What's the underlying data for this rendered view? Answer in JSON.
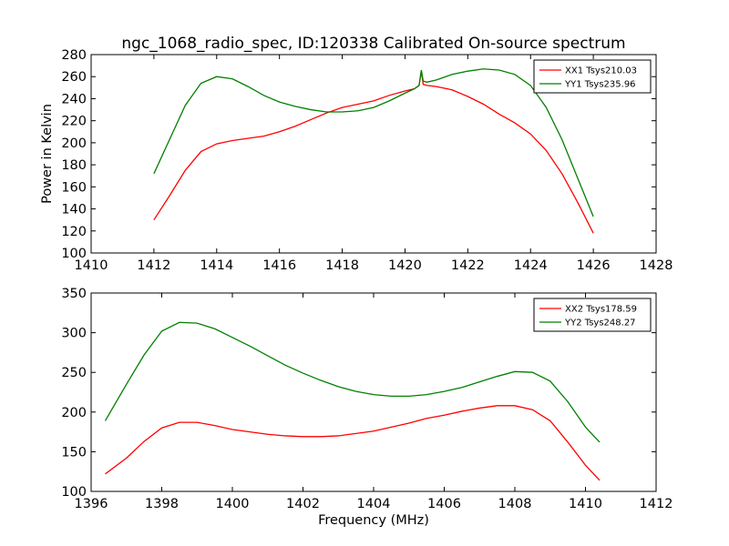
{
  "chart_data": [
    {
      "type": "line",
      "title": "ngc_1068_radio_spec, ID:120338 Calibrated On-source spectrum",
      "xlabel": "",
      "ylabel": "Power in Kelvin",
      "xlim": [
        1410,
        1428
      ],
      "ylim": [
        100,
        280
      ],
      "xticks": [
        1410,
        1412,
        1414,
        1416,
        1418,
        1420,
        1422,
        1424,
        1426,
        1428
      ],
      "yticks": [
        100,
        120,
        140,
        160,
        180,
        200,
        220,
        240,
        260,
        280
      ],
      "grid": false,
      "legend_position": "top-right",
      "series": [
        {
          "name": "XX1 Tsys210.03",
          "color": "#ff0000",
          "points": [
            [
              1412.0,
              130
            ],
            [
              1412.5,
              152
            ],
            [
              1413.0,
              175
            ],
            [
              1413.5,
              192
            ],
            [
              1414.0,
              199
            ],
            [
              1414.5,
              202
            ],
            [
              1415.0,
              204
            ],
            [
              1415.5,
              206
            ],
            [
              1416.0,
              210
            ],
            [
              1416.5,
              215
            ],
            [
              1417.0,
              221
            ],
            [
              1417.5,
              227
            ],
            [
              1418.0,
              232
            ],
            [
              1418.5,
              235
            ],
            [
              1419.0,
              238
            ],
            [
              1419.5,
              243
            ],
            [
              1420.0,
              247
            ],
            [
              1420.3,
              249
            ],
            [
              1420.45,
              252
            ],
            [
              1420.52,
              265
            ],
            [
              1420.58,
              253
            ],
            [
              1420.7,
              252
            ],
            [
              1421.0,
              251
            ],
            [
              1421.5,
              248
            ],
            [
              1422.0,
              242
            ],
            [
              1422.5,
              235
            ],
            [
              1423.0,
              226
            ],
            [
              1423.5,
              218
            ],
            [
              1424.0,
              208
            ],
            [
              1424.5,
              193
            ],
            [
              1425.0,
              172
            ],
            [
              1425.5,
              146
            ],
            [
              1426.0,
              118
            ]
          ]
        },
        {
          "name": "YY1 Tsys235.96",
          "color": "#008000",
          "points": [
            [
              1412.0,
              172
            ],
            [
              1412.5,
              203
            ],
            [
              1413.0,
              234
            ],
            [
              1413.5,
              254
            ],
            [
              1414.0,
              260
            ],
            [
              1414.5,
              258
            ],
            [
              1415.0,
              251
            ],
            [
              1415.5,
              243
            ],
            [
              1416.0,
              237
            ],
            [
              1416.5,
              233
            ],
            [
              1417.0,
              230
            ],
            [
              1417.5,
              228
            ],
            [
              1418.0,
              228
            ],
            [
              1418.5,
              229
            ],
            [
              1419.0,
              232
            ],
            [
              1419.5,
              238
            ],
            [
              1420.0,
              245
            ],
            [
              1420.3,
              249
            ],
            [
              1420.45,
              252
            ],
            [
              1420.52,
              266
            ],
            [
              1420.58,
              256
            ],
            [
              1420.7,
              255
            ],
            [
              1421.0,
              257
            ],
            [
              1421.5,
              262
            ],
            [
              1422.0,
              265
            ],
            [
              1422.5,
              267
            ],
            [
              1423.0,
              266
            ],
            [
              1423.5,
              262
            ],
            [
              1424.0,
              252
            ],
            [
              1424.5,
              232
            ],
            [
              1425.0,
              203
            ],
            [
              1425.5,
              168
            ],
            [
              1426.0,
              133
            ]
          ]
        }
      ]
    },
    {
      "type": "line",
      "title": "",
      "xlabel": "Frequency (MHz)",
      "ylabel": "",
      "xlim": [
        1396,
        1412
      ],
      "ylim": [
        100,
        350
      ],
      "xticks": [
        1396,
        1398,
        1400,
        1402,
        1404,
        1406,
        1408,
        1410,
        1412
      ],
      "yticks": [
        100,
        150,
        200,
        250,
        300,
        350
      ],
      "grid": false,
      "legend_position": "top-right",
      "series": [
        {
          "name": "XX2 Tsys178.59",
          "color": "#ff0000",
          "points": [
            [
              1396.4,
              122
            ],
            [
              1397.0,
              142
            ],
            [
              1397.5,
              163
            ],
            [
              1398.0,
              180
            ],
            [
              1398.5,
              187
            ],
            [
              1399.0,
              187
            ],
            [
              1399.5,
              183
            ],
            [
              1400.0,
              178
            ],
            [
              1400.5,
              175
            ],
            [
              1401.0,
              172
            ],
            [
              1401.5,
              170
            ],
            [
              1402.0,
              169
            ],
            [
              1402.5,
              169
            ],
            [
              1403.0,
              170
            ],
            [
              1403.5,
              173
            ],
            [
              1404.0,
              176
            ],
            [
              1404.5,
              181
            ],
            [
              1405.0,
              186
            ],
            [
              1405.5,
              192
            ],
            [
              1406.0,
              196
            ],
            [
              1406.5,
              201
            ],
            [
              1407.0,
              205
            ],
            [
              1407.5,
              208
            ],
            [
              1408.0,
              208
            ],
            [
              1408.5,
              203
            ],
            [
              1409.0,
              189
            ],
            [
              1409.5,
              162
            ],
            [
              1410.0,
              133
            ],
            [
              1410.4,
              114
            ]
          ]
        },
        {
          "name": "YY2 Tsys248.27",
          "color": "#008000",
          "points": [
            [
              1396.4,
              189
            ],
            [
              1397.0,
              235
            ],
            [
              1397.5,
              272
            ],
            [
              1398.0,
              302
            ],
            [
              1398.5,
              313
            ],
            [
              1399.0,
              312
            ],
            [
              1399.5,
              305
            ],
            [
              1400.0,
              294
            ],
            [
              1400.5,
              283
            ],
            [
              1401.0,
              271
            ],
            [
              1401.5,
              259
            ],
            [
              1402.0,
              249
            ],
            [
              1402.5,
              240
            ],
            [
              1403.0,
              232
            ],
            [
              1403.5,
              226
            ],
            [
              1404.0,
              222
            ],
            [
              1404.5,
              220
            ],
            [
              1405.0,
              220
            ],
            [
              1405.5,
              222
            ],
            [
              1406.0,
              226
            ],
            [
              1406.5,
              231
            ],
            [
              1407.0,
              238
            ],
            [
              1407.5,
              245
            ],
            [
              1408.0,
              251
            ],
            [
              1408.5,
              250
            ],
            [
              1409.0,
              239
            ],
            [
              1409.5,
              213
            ],
            [
              1410.0,
              181
            ],
            [
              1410.4,
              162
            ]
          ]
        }
      ]
    }
  ]
}
